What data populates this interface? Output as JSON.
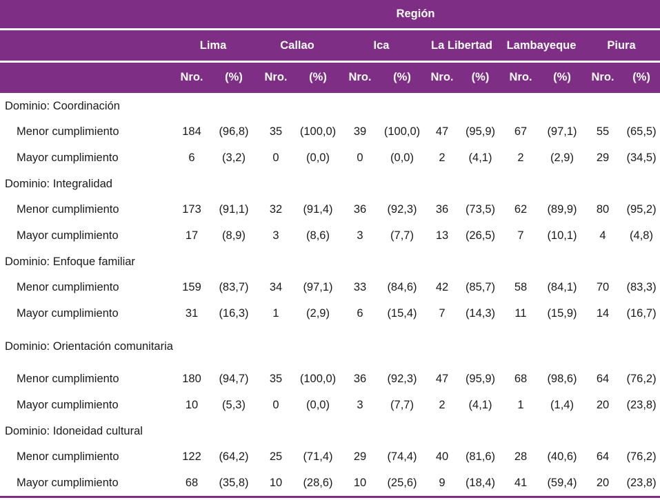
{
  "header": {
    "group_label": "Región",
    "regions": [
      "Lima",
      "Callao",
      "Ica",
      "La Libertad",
      "Lambayeque",
      "Piura"
    ],
    "sub_labels": [
      "Nro.",
      "(%)"
    ]
  },
  "domains": [
    {
      "name": "Dominio: Coordinación",
      "rows": [
        {
          "label": "Menor cumplimiento",
          "cells": [
            "184",
            "(96,8)",
            "35",
            "(100,0)",
            "39",
            "(100,0)",
            "47",
            "(95,9)",
            "67",
            "(97,1)",
            "55",
            "(65,5)"
          ]
        },
        {
          "label": "Mayor cumplimiento",
          "cells": [
            "6",
            "(3,2)",
            "0",
            "(0,0)",
            "0",
            "(0,0)",
            "2",
            "(4,1)",
            "2",
            "(2,9)",
            "29",
            "(34,5)"
          ]
        }
      ]
    },
    {
      "name": "Dominio: Integralidad",
      "rows": [
        {
          "label": "Menor cumplimiento",
          "cells": [
            "173",
            "(91,1)",
            "32",
            "(91,4)",
            "36",
            "(92,3)",
            "36",
            "(73,5)",
            "62",
            "(89,9)",
            "80",
            "(95,2)"
          ]
        },
        {
          "label": "Mayor cumplimiento",
          "cells": [
            "17",
            "(8,9)",
            "3",
            "(8,6)",
            "3",
            "(7,7)",
            "13",
            "(26,5)",
            "7",
            "(10,1)",
            "4",
            "(4,8)"
          ]
        }
      ]
    },
    {
      "name": "Dominio: Enfoque familiar",
      "rows": [
        {
          "label": "Menor cumplimiento",
          "cells": [
            "159",
            "(83,7)",
            "34",
            "(97,1)",
            "33",
            "(84,6)",
            "42",
            "(85,7)",
            "58",
            "(84,1)",
            "70",
            "(83,3)"
          ]
        },
        {
          "label": "Mayor cumplimiento",
          "cells": [
            "31",
            "(16,3)",
            "1",
            "(2,9)",
            "6",
            "(15,4)",
            "7",
            "(14,3)",
            "11",
            "(15,9)",
            "14",
            "(16,7)"
          ]
        }
      ]
    },
    {
      "name": "Dominio: Orientación comunitaria",
      "rows": [
        {
          "label": "Menor cumplimiento",
          "cells": [
            "180",
            "(94,7)",
            "35",
            "(100,0)",
            "36",
            "(92,3)",
            "47",
            "(95,9)",
            "68",
            "(98,6)",
            "64",
            "(76,2)"
          ]
        },
        {
          "label": "Mayor cumplimiento",
          "cells": [
            "10",
            "(5,3)",
            "0",
            "(0,0)",
            "3",
            "(7,7)",
            "2",
            "(4,1)",
            "1",
            "(1,4)",
            "20",
            "(23,8)"
          ]
        }
      ]
    },
    {
      "name": "Dominio: Idoneidad cultural",
      "rows": [
        {
          "label": "Menor cumplimiento",
          "cells": [
            "122",
            "(64,2)",
            "25",
            "(71,4)",
            "29",
            "(74,4)",
            "40",
            "(81,6)",
            "28",
            "(40,6)",
            "64",
            "(76,2)"
          ]
        },
        {
          "label": "Mayor cumplimiento",
          "cells": [
            "68",
            "(35,8)",
            "10",
            "(28,6)",
            "10",
            "(25,6)",
            "9",
            "(18,4)",
            "41",
            "(59,4)",
            "20",
            "(23,8)"
          ]
        }
      ]
    }
  ]
}
